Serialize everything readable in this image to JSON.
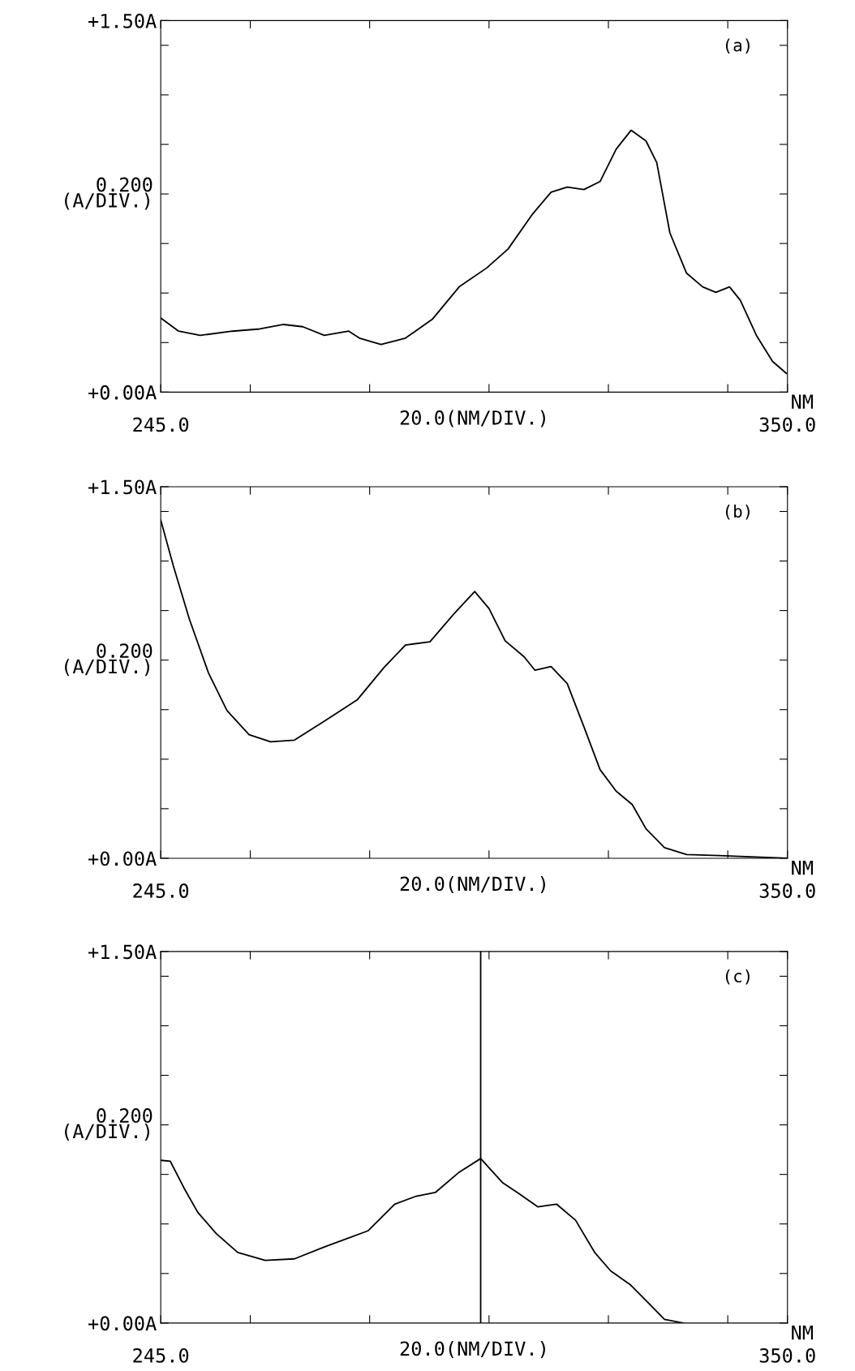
{
  "chart_data": [
    {
      "type": "line",
      "xlabel": "20.0(NM/DIV.)",
      "ylabel": "0.200\n(A/DIV.)",
      "annotations": [
        "(a)",
        "NM"
      ],
      "xlim": [
        245,
        350
      ],
      "ylim": [
        0,
        1.5
      ],
      "xticks": [
        {
          "value": 245,
          "label": "245.0"
        },
        {
          "value": 260,
          "label": null
        },
        {
          "value": 280,
          "label": null
        },
        {
          "value": 300,
          "label": null
        },
        {
          "value": 320,
          "label": null
        },
        {
          "value": 340,
          "label": null
        },
        {
          "value": 350,
          "label": "350.0"
        }
      ],
      "yticks": [
        {
          "value": 0,
          "label": "+0.00A"
        },
        {
          "value": 0.2,
          "label": null
        },
        {
          "value": 0.4,
          "label": null
        },
        {
          "value": 0.6,
          "label": null
        },
        {
          "value": 0.8,
          "label": null
        },
        {
          "value": 1.0,
          "label": null
        },
        {
          "value": 1.2,
          "label": null
        },
        {
          "value": 1.4,
          "label": null
        },
        {
          "value": 1.5,
          "label": "+1.50A"
        }
      ],
      "grid": false,
      "legend": false,
      "series": [
        {
          "color": "#000000",
          "x": [
            245,
            248.0,
            251.6,
            257.0,
            261.6,
            265.6,
            268.8,
            272.4,
            276.5,
            278.3,
            281.9,
            286.0,
            290.5,
            295.0,
            299.6,
            303.2,
            307.3,
            310.4,
            313.1,
            315.9,
            318.6,
            321.3,
            323.8,
            326.3,
            328.1,
            330.3,
            333.1,
            335.8,
            338.0,
            340.3,
            342.1,
            344.8,
            347.5,
            349.8
          ],
          "values": [
            0.299,
            0.246,
            0.229,
            0.246,
            0.255,
            0.273,
            0.264,
            0.229,
            0.246,
            0.218,
            0.192,
            0.218,
            0.294,
            0.425,
            0.501,
            0.578,
            0.719,
            0.807,
            0.828,
            0.818,
            0.85,
            0.981,
            1.057,
            1.014,
            0.927,
            0.643,
            0.48,
            0.425,
            0.403,
            0.425,
            0.371,
            0.229,
            0.124,
            0.076
          ]
        }
      ]
    },
    {
      "type": "line",
      "xlabel": "20.0(NM/DIV.)",
      "ylabel": "0.200\n(A/DIV.)",
      "annotations": [
        "(b)",
        "NM"
      ],
      "xlim": [
        245,
        350
      ],
      "ylim": [
        0,
        1.5
      ],
      "xticks": [
        {
          "value": 245,
          "label": "245.0"
        },
        {
          "value": 260,
          "label": null
        },
        {
          "value": 280,
          "label": null
        },
        {
          "value": 300,
          "label": null
        },
        {
          "value": 320,
          "label": null
        },
        {
          "value": 340,
          "label": null
        },
        {
          "value": 350,
          "label": "350.0"
        }
      ],
      "yticks": [
        {
          "value": 0,
          "label": "+0.00A"
        },
        {
          "value": 0.2,
          "label": null
        },
        {
          "value": 0.4,
          "label": null
        },
        {
          "value": 0.6,
          "label": null
        },
        {
          "value": 0.8,
          "label": null
        },
        {
          "value": 1.0,
          "label": null
        },
        {
          "value": 1.2,
          "label": null
        },
        {
          "value": 1.4,
          "label": null
        },
        {
          "value": 1.5,
          "label": "+1.50A"
        }
      ],
      "grid": false,
      "legend": false,
      "series": [
        {
          "color": "#000000",
          "x": [
            245,
            247.1,
            249.8,
            253.0,
            256.1,
            259.8,
            263.4,
            267.4,
            272.4,
            277.9,
            282.4,
            286.0,
            290.1,
            294.1,
            297.6,
            300.0,
            302.7,
            305.9,
            307.7,
            310.4,
            313.1,
            315.9,
            318.6,
            321.3,
            324.0,
            326.3,
            329.4,
            333.1,
            338.5,
            349.8
          ],
          "values": [
            1.366,
            1.181,
            0.965,
            0.748,
            0.596,
            0.499,
            0.47,
            0.477,
            0.553,
            0.639,
            0.77,
            0.861,
            0.874,
            0.986,
            1.077,
            1.008,
            0.878,
            0.813,
            0.759,
            0.774,
            0.705,
            0.531,
            0.358,
            0.271,
            0.217,
            0.119,
            0.043,
            0.015,
            0.011,
            0.0
          ]
        }
      ]
    },
    {
      "type": "line",
      "xlabel": "20.0(NM/DIV.)",
      "ylabel": "0.200\n(A/DIV.)",
      "annotations": [
        "(c)",
        "NM"
      ],
      "xlim": [
        245,
        350
      ],
      "ylim": [
        0,
        1.5
      ],
      "xticks": [
        {
          "value": 245,
          "label": "245.0"
        },
        {
          "value": 260,
          "label": null
        },
        {
          "value": 280,
          "label": null
        },
        {
          "value": 300,
          "label": null
        },
        {
          "value": 320,
          "label": null
        },
        {
          "value": 340,
          "label": null
        },
        {
          "value": 350,
          "label": "350.0"
        }
      ],
      "yticks": [
        {
          "value": 0,
          "label": "+0.00A"
        },
        {
          "value": 0.2,
          "label": null
        },
        {
          "value": 0.4,
          "label": null
        },
        {
          "value": 0.6,
          "label": null
        },
        {
          "value": 0.8,
          "label": null
        },
        {
          "value": 1.0,
          "label": null
        },
        {
          "value": 1.2,
          "label": null
        },
        {
          "value": 1.4,
          "label": null
        },
        {
          "value": 1.5,
          "label": "+1.50A"
        }
      ],
      "grid": false,
      "legend": false,
      "ref_lines": [
        {
          "axis": "x",
          "value": 298.6,
          "color": "#000000"
        }
      ],
      "series": [
        {
          "color": "#000000",
          "x": [
            245,
            246.6,
            248.9,
            251.2,
            254.3,
            257.9,
            262.5,
            267.4,
            272.4,
            279.7,
            284.2,
            287.8,
            291.0,
            295.0,
            298.6,
            302.3,
            305.0,
            308.2,
            311.3,
            314.5,
            317.7,
            320.4,
            323.6,
            326.3,
            329.4,
            332.6
          ],
          "values": [
            0.657,
            0.653,
            0.545,
            0.447,
            0.361,
            0.285,
            0.253,
            0.259,
            0.307,
            0.372,
            0.48,
            0.512,
            0.527,
            0.609,
            0.664,
            0.566,
            0.523,
            0.469,
            0.48,
            0.415,
            0.285,
            0.21,
            0.156,
            0.091,
            0.015,
            0.0
          ]
        }
      ]
    }
  ]
}
